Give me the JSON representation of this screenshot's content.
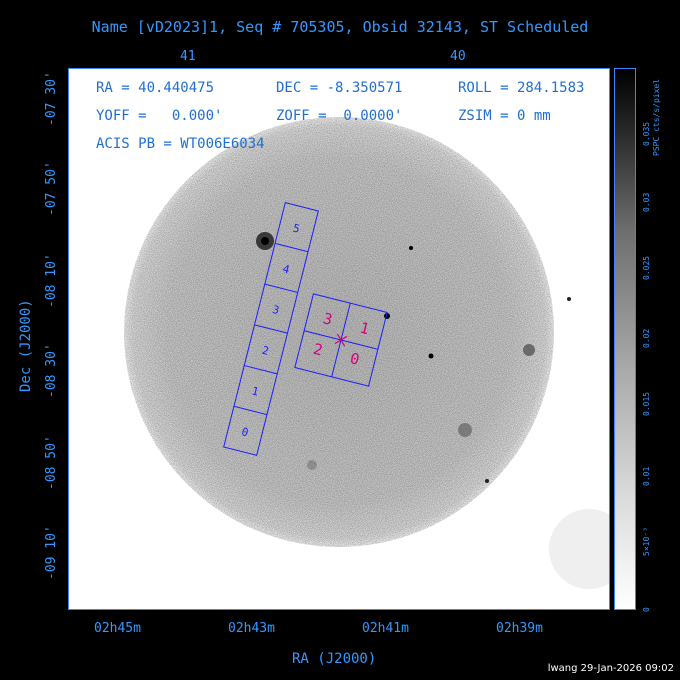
{
  "title": "Name [vD2023]1, Seq # 705305, Obsid 32143, ST Scheduled",
  "info": {
    "ra": "RA = 40.440475",
    "dec": "DEC = -8.350571",
    "roll": "ROLL = 284.1583",
    "yoff": "YOFF =   0.000'",
    "zoff": "ZOFF =  0.0000'",
    "zsim": "ZSIM = 0 mm",
    "acis": "ACIS PB = WT006E6034"
  },
  "top_ticks": [
    "41",
    "40"
  ],
  "bottom_ticks": [
    "02h45m",
    "02h43m",
    "02h41m",
    "02h39m"
  ],
  "left_ticks": [
    "-07 30'",
    "-07 50'",
    "-08 10'",
    "-08 30'",
    "-08 50'",
    "-09 10'"
  ],
  "x_axis_label": "RA (J2000)",
  "y_axis_label": "Dec (J2000)",
  "colorbar": {
    "label": "PSPC cts/s/pixel",
    "ticks": [
      "0",
      "5×10⁻³",
      "0.01",
      "0.015",
      "0.02",
      "0.025",
      "0.03",
      "0.035"
    ]
  },
  "chips_s": [
    "0",
    "1",
    "2",
    "3",
    "4",
    "5"
  ],
  "chips_i": [
    "3",
    "1",
    "2",
    "0"
  ],
  "stamp": "lwang 29-Jan-2026 09:02"
}
